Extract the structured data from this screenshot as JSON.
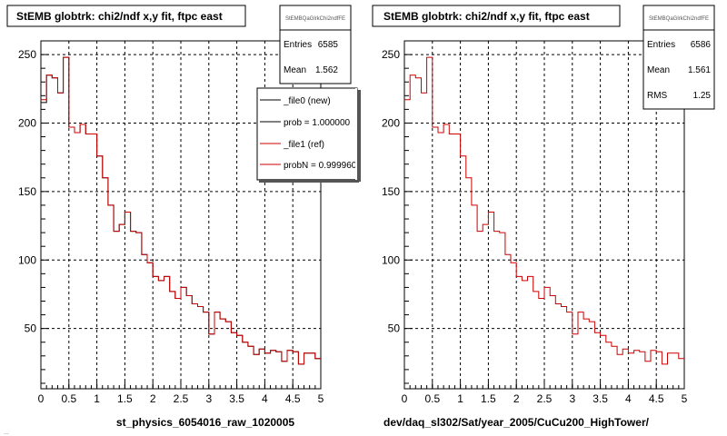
{
  "footer": "...",
  "chart_data": [
    {
      "type": "histogram",
      "title": "StEMB globtrk: chi2/ndf x,y fit, ftpc east",
      "stats": {
        "name": "StEMBQaGlrkChi2ndfFE",
        "rows": [
          {
            "label": "Entries",
            "value": "6585"
          },
          {
            "label": "Mean",
            "value": "1.562"
          }
        ]
      },
      "legend": {
        "entries": [
          {
            "label": "_file0 (new)",
            "color": "#000000"
          },
          {
            "label": "prob = 1.000000",
            "color": "#000000"
          },
          {
            "label": "_file1 (ref)",
            "color": "#cc0000"
          },
          {
            "label": "probN = 0.999960",
            "color": "#cc0000"
          }
        ]
      },
      "xlabel": "st_physics_6054016_raw_1020005",
      "xlim": [
        0,
        5
      ],
      "ylim": [
        6,
        260
      ],
      "xticks": [
        0,
        0.5,
        1,
        1.5,
        2,
        2.5,
        3,
        3.5,
        4,
        4.5,
        5
      ],
      "yticks": [
        50,
        100,
        150,
        200,
        250
      ],
      "bin_width": 0.1,
      "series": [
        {
          "color": "#000000",
          "values": [
            215,
            235,
            233,
            222,
            248,
            197,
            193,
            199,
            192,
            192,
            176,
            160,
            140,
            121,
            126,
            135,
            121,
            120,
            104,
            98,
            88,
            85,
            88,
            77,
            72,
            80,
            74,
            68,
            66,
            62,
            46,
            62,
            57,
            55,
            47,
            45,
            40,
            37,
            31,
            35,
            32,
            34,
            33,
            26,
            34,
            33,
            24,
            32,
            32,
            28
          ]
        },
        {
          "color": "#cc0000",
          "values": [
            217,
            235,
            233,
            222,
            248,
            197,
            193,
            199,
            192,
            192,
            176,
            160,
            140,
            121,
            126,
            135,
            121,
            120,
            104,
            98,
            88,
            85,
            88,
            77,
            72,
            80,
            74,
            68,
            66,
            62,
            46,
            62,
            57,
            55,
            47,
            45,
            40,
            37,
            31,
            35,
            32,
            34,
            33,
            26,
            34,
            33,
            24,
            32,
            32,
            28
          ]
        }
      ]
    },
    {
      "type": "histogram",
      "title": "StEMB globtrk: chi2/ndf x,y fit, ftpc east",
      "stats": {
        "name": "StEMBQaGlrkChi2ndfFE",
        "rows": [
          {
            "label": "Entries",
            "value": "6586"
          },
          {
            "label": "Mean",
            "value": "1.561"
          },
          {
            "label": "RMS",
            "value": "1.25"
          }
        ]
      },
      "xlabel": "dev/daq_sl302/Sat/year_2005/CuCu200_HighTower/",
      "xlim": [
        0,
        5
      ],
      "ylim": [
        6,
        260
      ],
      "xticks": [
        0,
        0.5,
        1,
        1.5,
        2,
        2.5,
        3,
        3.5,
        4,
        4.5,
        5
      ],
      "yticks": [
        50,
        100,
        150,
        200,
        250
      ],
      "bin_width": 0.1,
      "series": [
        {
          "color": "#cc0000",
          "values": [
            217,
            235,
            233,
            222,
            248,
            197,
            193,
            199,
            192,
            192,
            176,
            160,
            140,
            121,
            126,
            135,
            121,
            120,
            104,
            98,
            88,
            85,
            88,
            77,
            72,
            80,
            74,
            68,
            66,
            62,
            46,
            62,
            57,
            55,
            47,
            45,
            40,
            37,
            31,
            35,
            32,
            34,
            33,
            26,
            34,
            33,
            24,
            32,
            32,
            28
          ]
        }
      ]
    }
  ]
}
